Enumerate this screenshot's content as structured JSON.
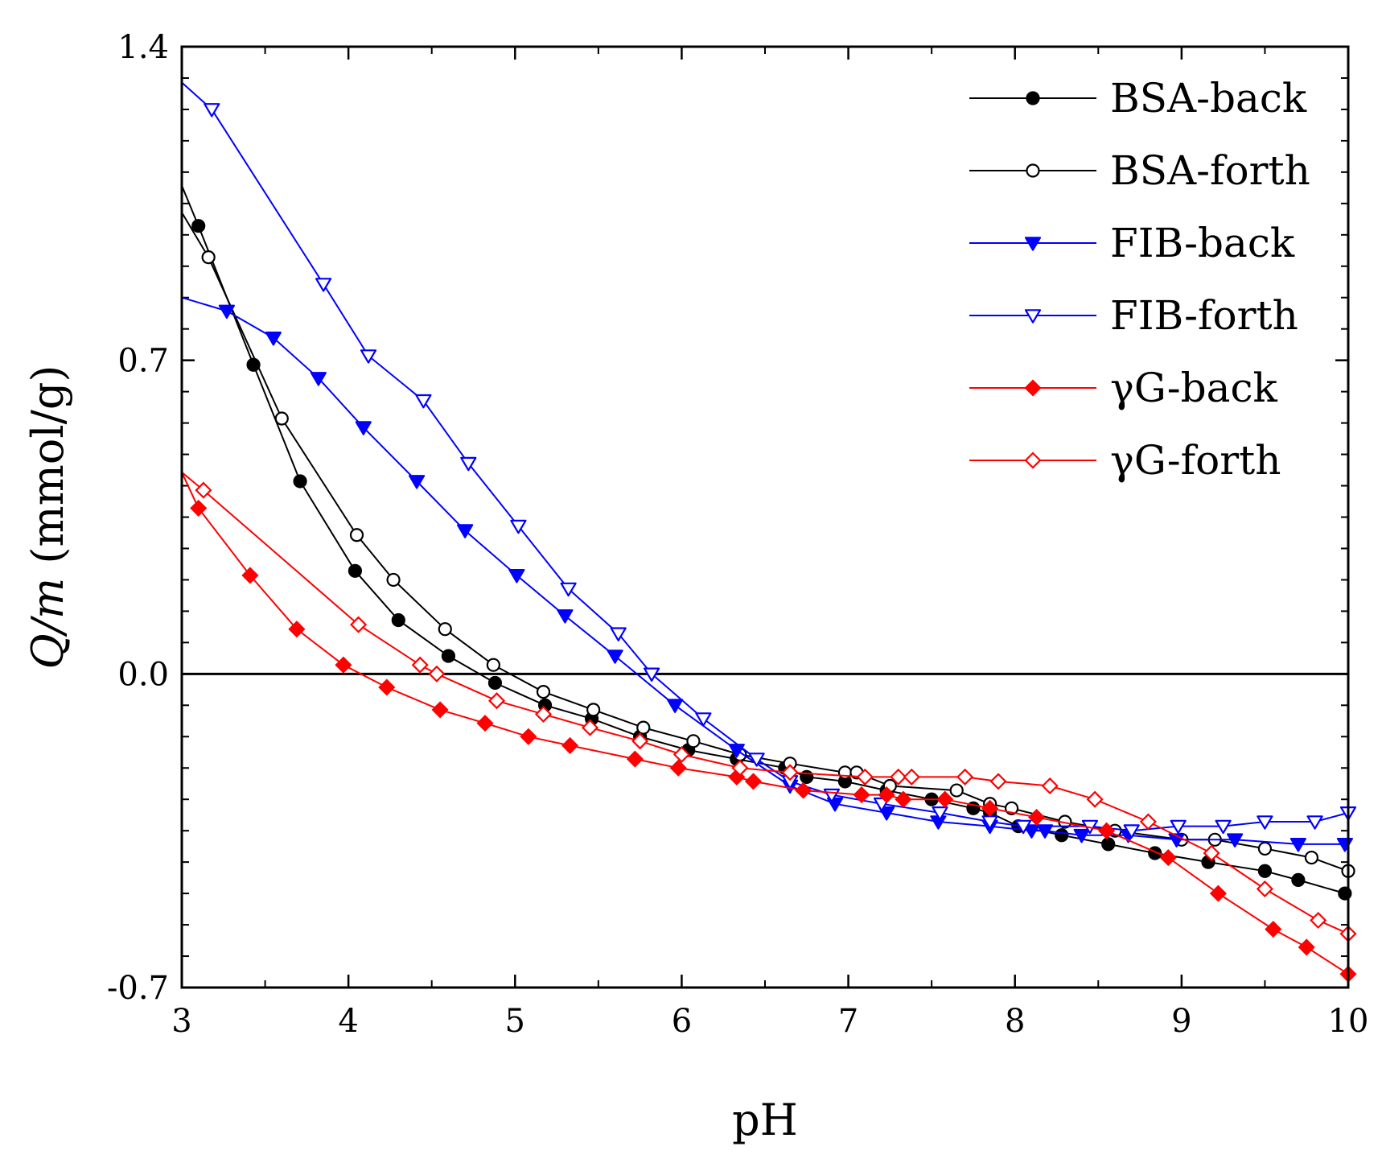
{
  "chart_data": {
    "type": "line",
    "title": "",
    "xlabel": "pH",
    "ylabel_italic": "Q/m",
    "ylabel_unit": " (mmol/g)",
    "xlim": [
      3,
      10
    ],
    "ylim": [
      -0.7,
      1.4
    ],
    "xticks": [
      3,
      4,
      5,
      6,
      7,
      8,
      9,
      10
    ],
    "xtick_labels": [
      "3",
      "4",
      "5",
      "6",
      "7",
      "8",
      "9",
      "10"
    ],
    "yticks": [
      -0.7,
      0.0,
      0.7,
      1.4
    ],
    "ytick_labels": [
      "-0.7",
      "0.0",
      "0.7",
      "1.4"
    ],
    "zero_line": true,
    "legend_position": "top-right",
    "series": [
      {
        "name": "BSA-back",
        "color": "#000000",
        "marker": "circle",
        "filled": true,
        "x": [
          3.0,
          3.1,
          3.43,
          3.71,
          4.04,
          4.3,
          4.6,
          4.88,
          5.18,
          5.46,
          5.75,
          6.04,
          6.33,
          6.62,
          6.75,
          6.98,
          7.23,
          7.5,
          7.75,
          7.85,
          8.02,
          8.28,
          8.56,
          8.84,
          9.16,
          9.5,
          9.7,
          9.98
        ],
        "y": [
          1.09,
          1.0,
          0.69,
          0.43,
          0.23,
          0.12,
          0.04,
          -0.02,
          -0.07,
          -0.1,
          -0.14,
          -0.17,
          -0.19,
          -0.21,
          -0.23,
          -0.24,
          -0.26,
          -0.28,
          -0.3,
          -0.31,
          -0.34,
          -0.36,
          -0.38,
          -0.4,
          -0.42,
          -0.44,
          -0.46,
          -0.49
        ]
      },
      {
        "name": "BSA-forth",
        "color": "#000000",
        "marker": "circle",
        "filled": false,
        "x": [
          3.0,
          3.16,
          3.6,
          4.05,
          4.27,
          4.58,
          4.87,
          5.17,
          5.47,
          5.77,
          6.07,
          6.35,
          6.65,
          6.98,
          7.05,
          7.25,
          7.65,
          7.85,
          7.98,
          8.3,
          8.6,
          9.0,
          9.2,
          9.5,
          9.78,
          10.0
        ],
        "y": [
          1.03,
          0.93,
          0.57,
          0.31,
          0.21,
          0.1,
          0.02,
          -0.04,
          -0.08,
          -0.12,
          -0.15,
          -0.18,
          -0.2,
          -0.22,
          -0.22,
          -0.25,
          -0.26,
          -0.29,
          -0.3,
          -0.33,
          -0.35,
          -0.37,
          -0.37,
          -0.39,
          -0.41,
          -0.44
        ]
      },
      {
        "name": "FIB-back",
        "color": "#0000ff",
        "marker": "triangle-down",
        "filled": true,
        "x": [
          3.0,
          3.27,
          3.55,
          3.82,
          4.09,
          4.41,
          4.7,
          5.01,
          5.3,
          5.6,
          5.96,
          6.33,
          6.65,
          6.92,
          7.23,
          7.54,
          7.85,
          8.1,
          8.18,
          8.4,
          8.68,
          8.97,
          9.32,
          9.7,
          9.98
        ],
        "y": [
          0.84,
          0.81,
          0.75,
          0.66,
          0.55,
          0.43,
          0.32,
          0.22,
          0.13,
          0.04,
          -0.07,
          -0.17,
          -0.25,
          -0.29,
          -0.31,
          -0.33,
          -0.34,
          -0.35,
          -0.35,
          -0.36,
          -0.36,
          -0.37,
          -0.37,
          -0.38,
          -0.38
        ]
      },
      {
        "name": "FIB-forth",
        "color": "#0000ff",
        "marker": "triangle-down",
        "filled": false,
        "x": [
          3.0,
          3.18,
          3.85,
          4.12,
          4.45,
          4.72,
          5.02,
          5.32,
          5.62,
          5.82,
          6.13,
          6.45,
          6.65,
          6.9,
          7.2,
          7.55,
          7.85,
          8.05,
          8.45,
          8.7,
          8.98,
          9.25,
          9.5,
          9.8,
          10.0
        ],
        "y": [
          1.32,
          1.26,
          0.87,
          0.71,
          0.61,
          0.47,
          0.33,
          0.19,
          0.09,
          0.0,
          -0.1,
          -0.19,
          -0.24,
          -0.27,
          -0.29,
          -0.31,
          -0.33,
          -0.34,
          -0.34,
          -0.35,
          -0.34,
          -0.34,
          -0.33,
          -0.33,
          -0.31
        ]
      },
      {
        "name": "γG-back",
        "color": "#ff0000",
        "marker": "diamond",
        "filled": true,
        "x": [
          3.0,
          3.1,
          3.41,
          3.69,
          3.97,
          4.23,
          4.55,
          4.82,
          5.08,
          5.33,
          5.72,
          5.98,
          6.33,
          6.43,
          6.73,
          7.08,
          7.23,
          7.33,
          7.58,
          7.85,
          8.13,
          8.55,
          8.92,
          9.22,
          9.55,
          9.75,
          10.0
        ],
        "y": [
          0.45,
          0.37,
          0.22,
          0.1,
          0.02,
          -0.03,
          -0.08,
          -0.11,
          -0.14,
          -0.16,
          -0.19,
          -0.21,
          -0.23,
          -0.24,
          -0.26,
          -0.27,
          -0.27,
          -0.28,
          -0.28,
          -0.3,
          -0.32,
          -0.35,
          -0.41,
          -0.49,
          -0.57,
          -0.61,
          -0.67
        ]
      },
      {
        "name": "γG-forth",
        "color": "#ff0000",
        "marker": "diamond",
        "filled": false,
        "x": [
          3.0,
          3.13,
          4.06,
          4.43,
          4.53,
          4.89,
          5.17,
          5.45,
          5.75,
          6.0,
          6.35,
          6.65,
          7.1,
          7.3,
          7.38,
          7.7,
          7.9,
          8.21,
          8.48,
          8.8,
          9.18,
          9.5,
          9.82,
          10.0
        ],
        "y": [
          0.45,
          0.41,
          0.11,
          0.02,
          0.0,
          -0.06,
          -0.09,
          -0.12,
          -0.15,
          -0.18,
          -0.21,
          -0.22,
          -0.23,
          -0.23,
          -0.23,
          -0.23,
          -0.24,
          -0.25,
          -0.28,
          -0.33,
          -0.4,
          -0.48,
          -0.55,
          -0.58
        ]
      }
    ]
  }
}
